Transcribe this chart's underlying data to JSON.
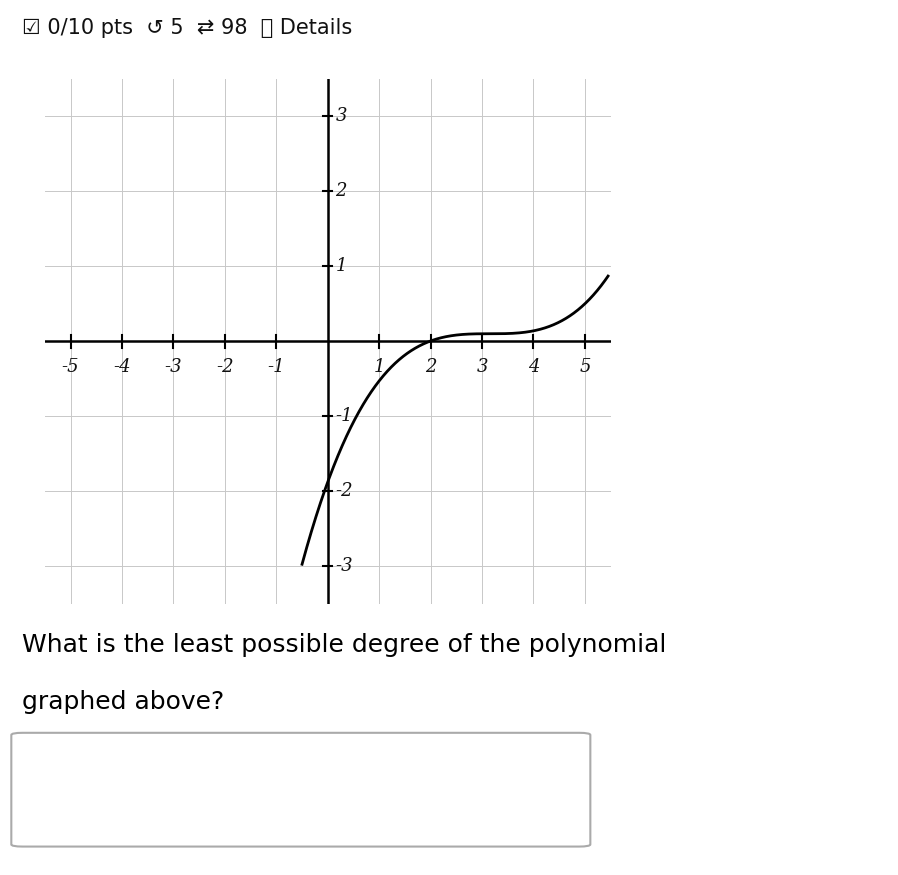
{
  "xlim": [
    -5.5,
    5.5
  ],
  "ylim": [
    -3.5,
    3.5
  ],
  "xticks": [
    -5,
    -4,
    -3,
    -2,
    -1,
    1,
    2,
    3,
    4,
    5
  ],
  "yticks": [
    -3,
    -2,
    -1,
    1,
    2,
    3
  ],
  "curve_color": "#000000",
  "curve_linewidth": 2.0,
  "grid_color": "#c8c8c8",
  "grid_linewidth": 0.7,
  "bg_color": "#ffffff",
  "axis_color": "#000000",
  "axis_linewidth": 1.8,
  "header_text": "☑ 0/10 pts  ↺ 5  ⇄ 98  ⓘ Details",
  "question_line1": "What is the least possible degree of the polynomial",
  "question_line2": "graphed above?",
  "curve_a": 0.05,
  "curve_b": 3.0,
  "curve_c": 0.1,
  "x_curve_start": -0.5,
  "x_curve_end": 5.45,
  "tick_fontsize": 13,
  "tick_font": "serif",
  "question_fontsize": 18,
  "header_fontsize": 15
}
